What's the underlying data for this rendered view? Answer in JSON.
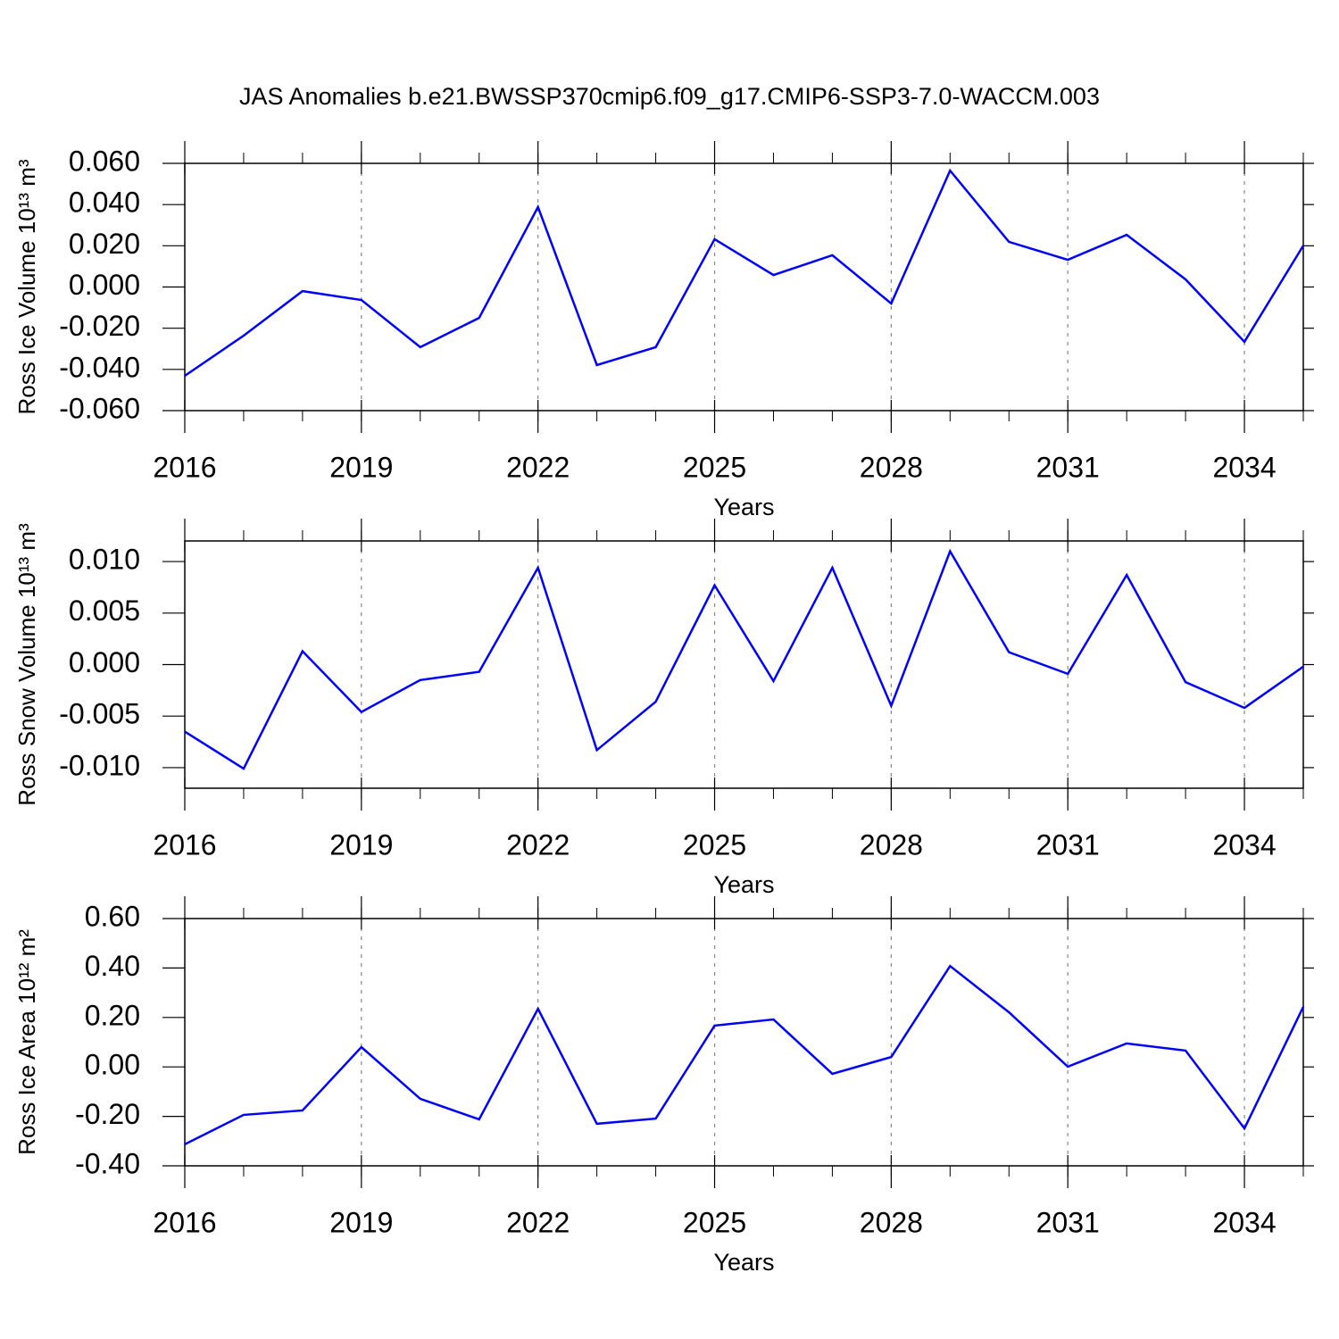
{
  "title": "JAS Anomalies b.e21.BWSSP370cmip6.f09_g17.CMIP6-SSP3-7.0-WACCM.003",
  "chart_data": [
    {
      "type": "line",
      "ylabel": "Ross Ice Volume 10¹³ m³",
      "xlabel": "Years",
      "x": [
        2016,
        2017,
        2018,
        2019,
        2020,
        2021,
        2022,
        2023,
        2024,
        2025,
        2026,
        2027,
        2028,
        2029,
        2030,
        2031,
        2032,
        2033,
        2034,
        2035
      ],
      "values": [
        -0.0431,
        -0.0236,
        -0.002,
        -0.0063,
        -0.0292,
        -0.015,
        0.0388,
        -0.0379,
        -0.0292,
        0.0232,
        0.0058,
        0.0154,
        -0.008,
        0.0565,
        0.0219,
        0.0132,
        0.0253,
        0.0037,
        -0.0266,
        0.0201
      ],
      "color": "#0000ff",
      "xlim": [
        2016,
        2035
      ],
      "xticks": [
        2016,
        2019,
        2022,
        2025,
        2028,
        2031,
        2034
      ],
      "ylim": [
        -0.06,
        0.06
      ],
      "yticks": [
        {
          "value": 0.06,
          "label": "0.060"
        },
        {
          "value": 0.04,
          "label": "0.040"
        },
        {
          "value": 0.02,
          "label": "0.020"
        },
        {
          "value": 0,
          "label": "0.000"
        },
        {
          "value": -0.02,
          "label": "-0.020"
        },
        {
          "value": -0.04,
          "label": "-0.040"
        },
        {
          "value": -0.06,
          "label": "-0.060"
        }
      ],
      "grid": "x"
    },
    {
      "type": "line",
      "ylabel": "Ross Snow Volume 10¹³ m³",
      "xlabel": "Years",
      "x": [
        2016,
        2017,
        2018,
        2019,
        2020,
        2021,
        2022,
        2023,
        2024,
        2025,
        2026,
        2027,
        2028,
        2029,
        2030,
        2031,
        2032,
        2033,
        2034,
        2035
      ],
      "values": [
        -0.0065,
        -0.0101,
        0.0013,
        -0.0046,
        -0.0015,
        -0.0007,
        0.0094,
        -0.0083,
        -0.0036,
        0.0077,
        -0.0016,
        0.0094,
        -0.004,
        0.011,
        0.0012,
        -0.0009,
        0.0087,
        -0.0017,
        -0.0042,
        -0.0002
      ],
      "color": "#0000ff",
      "xlim": [
        2016,
        2035
      ],
      "xticks": [
        2016,
        2019,
        2022,
        2025,
        2028,
        2031,
        2034
      ],
      "ylim": [
        -0.012,
        0.012
      ],
      "yticks": [
        {
          "value": 0.01,
          "label": "0.010"
        },
        {
          "value": 0.005,
          "label": "0.005"
        },
        {
          "value": 0,
          "label": "0.000"
        },
        {
          "value": -0.005,
          "label": "-0.005"
        },
        {
          "value": -0.01,
          "label": "-0.010"
        }
      ],
      "grid": "x"
    },
    {
      "type": "line",
      "ylabel": "Ross Ice Area 10¹² m²",
      "xlabel": "Years",
      "x": [
        2016,
        2017,
        2018,
        2019,
        2020,
        2021,
        2022,
        2023,
        2024,
        2025,
        2026,
        2027,
        2028,
        2029,
        2030,
        2031,
        2032,
        2033,
        2034,
        2035
      ],
      "values": [
        -0.313,
        -0.194,
        -0.176,
        0.08,
        -0.129,
        -0.212,
        0.235,
        -0.23,
        -0.209,
        0.167,
        0.192,
        -0.028,
        0.04,
        0.408,
        0.221,
        0.001,
        0.095,
        0.066,
        -0.249,
        0.243
      ],
      "color": "#0000ff",
      "xlim": [
        2016,
        2035
      ],
      "xticks": [
        2016,
        2019,
        2022,
        2025,
        2028,
        2031,
        2034
      ],
      "ylim": [
        -0.4,
        0.6
      ],
      "yticks": [
        {
          "value": 0.6,
          "label": "0.60"
        },
        {
          "value": 0.4,
          "label": "0.40"
        },
        {
          "value": 0.2,
          "label": "0.20"
        },
        {
          "value": 0,
          "label": "0.00"
        },
        {
          "value": -0.2,
          "label": "-0.20"
        },
        {
          "value": -0.4,
          "label": "-0.40"
        }
      ],
      "grid": "x"
    }
  ]
}
